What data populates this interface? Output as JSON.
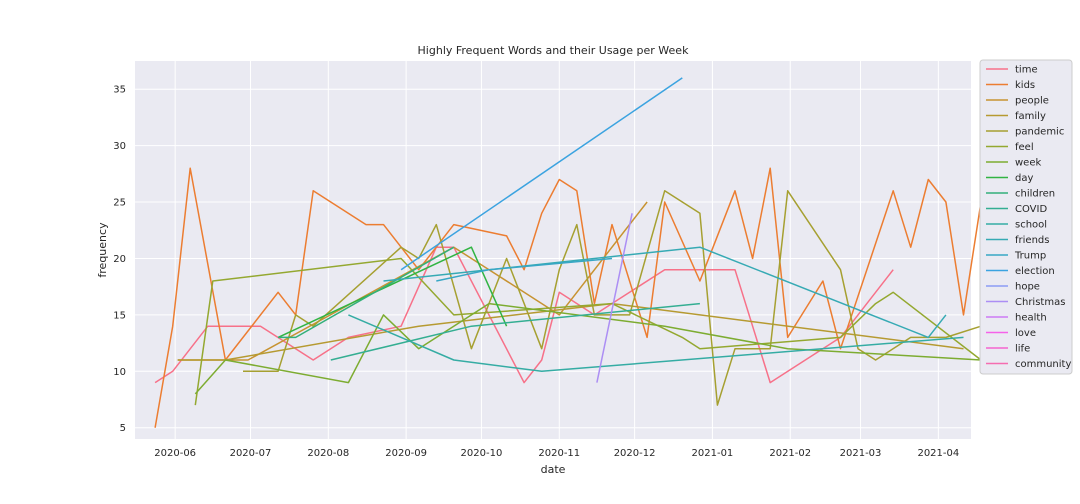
{
  "chart_data": {
    "type": "line",
    "title": "Highly Frequent Words and their Usage per Week",
    "xlabel": "date",
    "ylabel": "frequency",
    "xlim": [
      "2020-05-16",
      "2021-04-14"
    ],
    "ylim": [
      4,
      37.5
    ],
    "x_ticks": [
      {
        "date": "2020-06-01",
        "label": "2020-06"
      },
      {
        "date": "2020-07-01",
        "label": "2020-07"
      },
      {
        "date": "2020-08-01",
        "label": "2020-08"
      },
      {
        "date": "2020-09-01",
        "label": "2020-09"
      },
      {
        "date": "2020-10-01",
        "label": "2020-10"
      },
      {
        "date": "2020-11-01",
        "label": "2020-11"
      },
      {
        "date": "2020-12-01",
        "label": "2020-12"
      },
      {
        "date": "2021-01-01",
        "label": "2021-01"
      },
      {
        "date": "2021-02-01",
        "label": "2021-02"
      },
      {
        "date": "2021-03-01",
        "label": "2021-03"
      },
      {
        "date": "2021-04-01",
        "label": "2021-04"
      }
    ],
    "y_ticks": [
      5,
      10,
      15,
      20,
      25,
      30,
      35
    ],
    "grid": true,
    "legend_position": "outside-right",
    "series": [
      {
        "name": "time",
        "color": "#f77189",
        "points": [
          [
            "2020-05-24",
            9
          ],
          [
            "2020-05-31",
            10
          ],
          [
            "2020-06-14",
            14
          ],
          [
            "2020-07-05",
            14
          ],
          [
            "2020-07-26",
            11
          ],
          [
            "2020-08-09",
            13
          ],
          [
            "2020-08-30",
            14
          ],
          [
            "2020-09-13",
            21
          ],
          [
            "2020-09-20",
            21
          ],
          [
            "2020-10-18",
            9
          ],
          [
            "2020-10-25",
            11
          ],
          [
            "2020-11-01",
            17
          ],
          [
            "2020-11-15",
            15
          ],
          [
            "2020-11-29",
            17
          ],
          [
            "2020-12-13",
            19
          ],
          [
            "2021-01-10",
            19
          ],
          [
            "2021-01-24",
            9
          ],
          [
            "2021-02-21",
            13
          ],
          [
            "2021-03-14",
            19
          ]
        ]
      },
      {
        "name": "kids",
        "color": "#ec7d31",
        "points": [
          [
            "2020-05-24",
            5
          ],
          [
            "2020-05-31",
            14
          ],
          [
            "2020-06-07",
            28
          ],
          [
            "2020-06-21",
            11
          ],
          [
            "2020-07-12",
            17
          ],
          [
            "2020-07-19",
            15
          ],
          [
            "2020-07-26",
            26
          ],
          [
            "2020-08-16",
            23
          ],
          [
            "2020-08-23",
            23
          ],
          [
            "2020-09-06",
            19
          ],
          [
            "2020-09-20",
            23
          ],
          [
            "2020-10-11",
            22
          ],
          [
            "2020-10-18",
            19
          ],
          [
            "2020-10-25",
            24
          ],
          [
            "2020-11-01",
            27
          ],
          [
            "2020-11-08",
            26
          ],
          [
            "2020-11-15",
            16
          ],
          [
            "2020-11-22",
            23
          ],
          [
            "2020-12-06",
            13
          ],
          [
            "2020-12-13",
            25
          ],
          [
            "2020-12-27",
            18
          ],
          [
            "2021-01-10",
            26
          ],
          [
            "2021-01-17",
            20
          ],
          [
            "2021-01-24",
            28
          ],
          [
            "2021-01-31",
            13
          ],
          [
            "2021-02-14",
            18
          ],
          [
            "2021-02-21",
            12
          ],
          [
            "2021-03-14",
            26
          ],
          [
            "2021-03-21",
            21
          ],
          [
            "2021-03-28",
            27
          ],
          [
            "2021-04-04",
            25
          ],
          [
            "2021-04-11",
            15
          ],
          [
            "2021-04-18",
            25
          ]
        ]
      },
      {
        "name": "people",
        "color": "#c79331",
        "points": [
          [
            "2020-06-02",
            11
          ],
          [
            "2020-06-30",
            11
          ],
          [
            "2020-09-20",
            21
          ],
          [
            "2020-10-04",
            19
          ],
          [
            "2020-11-01",
            15
          ],
          [
            "2020-12-06",
            25
          ]
        ]
      },
      {
        "name": "family",
        "color": "#b69a31",
        "points": [
          [
            "2020-06-02",
            11
          ],
          [
            "2020-06-21",
            11
          ],
          [
            "2020-09-06",
            14
          ],
          [
            "2020-11-22",
            16
          ],
          [
            "2021-04-11",
            12
          ]
        ]
      },
      {
        "name": "pandemic",
        "color": "#a6a031",
        "points": [
          [
            "2020-06-28",
            10
          ],
          [
            "2020-07-12",
            10
          ],
          [
            "2020-07-19",
            15
          ],
          [
            "2020-07-26",
            14
          ],
          [
            "2020-08-30",
            21
          ],
          [
            "2020-09-06",
            20
          ],
          [
            "2020-09-13",
            23
          ],
          [
            "2020-09-27",
            12
          ],
          [
            "2020-10-11",
            20
          ],
          [
            "2020-10-25",
            12
          ],
          [
            "2020-11-01",
            19
          ],
          [
            "2020-11-08",
            23
          ],
          [
            "2020-11-15",
            15
          ],
          [
            "2020-11-29",
            15
          ],
          [
            "2020-12-13",
            26
          ],
          [
            "2020-12-27",
            24
          ],
          [
            "2021-01-03",
            7
          ],
          [
            "2021-01-10",
            12
          ],
          [
            "2021-01-24",
            12
          ],
          [
            "2021-01-31",
            26
          ],
          [
            "2021-02-21",
            19
          ],
          [
            "2021-02-28",
            12
          ],
          [
            "2021-03-07",
            11
          ],
          [
            "2021-03-21",
            13
          ],
          [
            "2021-04-04",
            13
          ],
          [
            "2021-04-18",
            14
          ]
        ]
      },
      {
        "name": "feel",
        "color": "#94a830",
        "points": [
          [
            "2020-06-09",
            7
          ],
          [
            "2020-06-16",
            18
          ],
          [
            "2020-08-30",
            20
          ],
          [
            "2020-09-20",
            15
          ],
          [
            "2020-11-22",
            16
          ],
          [
            "2020-12-20",
            13
          ],
          [
            "2020-12-27",
            12
          ],
          [
            "2021-02-21",
            13
          ],
          [
            "2021-03-07",
            16
          ],
          [
            "2021-03-14",
            17
          ],
          [
            "2021-04-18",
            11
          ]
        ]
      },
      {
        "name": "week",
        "color": "#7dac31",
        "points": [
          [
            "2020-06-09",
            8
          ],
          [
            "2020-06-21",
            11
          ],
          [
            "2020-08-09",
            9
          ],
          [
            "2020-08-23",
            15
          ],
          [
            "2020-09-06",
            12
          ],
          [
            "2020-10-04",
            16
          ],
          [
            "2020-12-13",
            14
          ],
          [
            "2021-01-31",
            12
          ],
          [
            "2021-04-18",
            11
          ]
        ]
      },
      {
        "name": "day",
        "color": "#31b443",
        "points": [
          [
            "2020-07-12",
            13
          ],
          [
            "2020-09-27",
            21
          ],
          [
            "2020-10-11",
            14
          ]
        ]
      },
      {
        "name": "children",
        "color": "#33b07a",
        "points": [
          [
            "2020-07-12",
            13
          ],
          [
            "2020-07-19",
            13
          ],
          [
            "2020-09-20",
            21
          ]
        ]
      },
      {
        "name": "COVID",
        "color": "#34ae92",
        "points": [
          [
            "2020-08-02",
            11
          ],
          [
            "2020-09-27",
            14
          ],
          [
            "2020-12-27",
            16
          ]
        ]
      },
      {
        "name": "school",
        "color": "#35aca4",
        "points": [
          [
            "2020-08-09",
            15
          ],
          [
            "2020-09-20",
            11
          ],
          [
            "2020-10-25",
            10
          ],
          [
            "2021-04-11",
            13
          ]
        ]
      },
      {
        "name": "friends",
        "color": "#36aab4",
        "points": [
          [
            "2020-08-23",
            18
          ],
          [
            "2020-12-27",
            21
          ],
          [
            "2021-03-28",
            13
          ],
          [
            "2021-04-04",
            15
          ]
        ]
      },
      {
        "name": "Trump",
        "color": "#38a7c5",
        "points": [
          [
            "2020-09-13",
            18
          ],
          [
            "2020-10-04",
            19
          ],
          [
            "2020-11-22",
            20
          ]
        ]
      },
      {
        "name": "election",
        "color": "#3ba3e0",
        "points": [
          [
            "2020-08-30",
            19
          ],
          [
            "2020-12-20",
            36
          ]
        ]
      },
      {
        "name": "hope",
        "color": "#8b9bf4",
        "points": []
      },
      {
        "name": "Christmas",
        "color": "#ac8ef4",
        "points": [
          [
            "2020-11-16",
            9
          ],
          [
            "2020-11-30",
            24
          ]
        ]
      },
      {
        "name": "health",
        "color": "#cc7af4",
        "points": []
      },
      {
        "name": "love",
        "color": "#f562e9",
        "points": []
      },
      {
        "name": "life",
        "color": "#f564d0",
        "points": []
      },
      {
        "name": "community",
        "color": "#f56db0",
        "points": []
      }
    ]
  }
}
